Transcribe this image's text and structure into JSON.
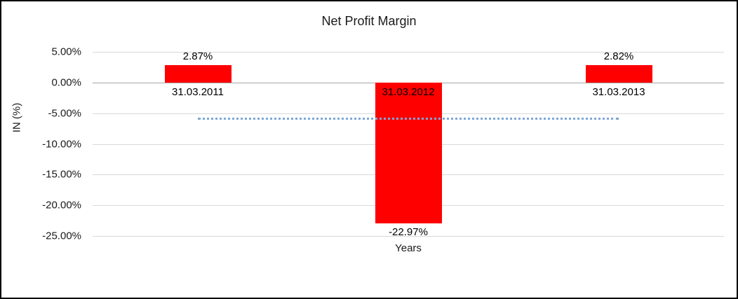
{
  "chart_data": {
    "type": "bar",
    "title": "Net Profit Margin",
    "xlabel": "Years",
    "ylabel": "IN (%)",
    "categories": [
      "31.03.2011",
      "31.03.2012",
      "31.03.2013"
    ],
    "values": [
      2.87,
      -22.97,
      2.82
    ],
    "value_labels": [
      "2.87%",
      "-22.97%",
      "2.82%"
    ],
    "ylim": [
      -25,
      5
    ],
    "ytick_step": 5,
    "ytick_labels": [
      "5.00%",
      "0.00%",
      "-5.00%",
      "-10.00%",
      "-15.00%",
      "-20.00%",
      "-25.00%"
    ],
    "grid": true,
    "legend": "none",
    "bar_color": "#ff0000",
    "gridline_color": "#d9d9d9",
    "zero_axis_color": "#a6a6a6",
    "trendline": {
      "value": -5.76,
      "color": "#7da7d9",
      "style": "dotted"
    }
  }
}
